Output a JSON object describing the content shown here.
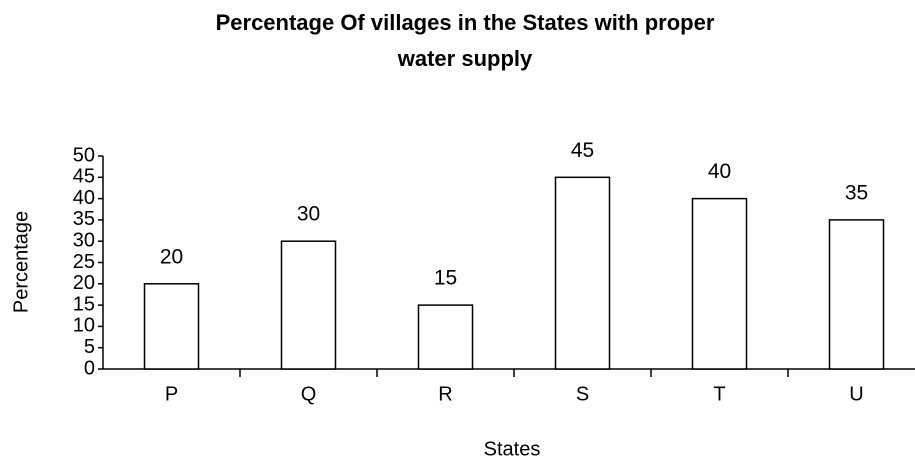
{
  "chart_data": {
    "type": "bar",
    "title": [
      "Percentage  Of villages  in the States with proper",
      "water supply"
    ],
    "x_label": "States",
    "y_label": "Percentage",
    "categories": [
      "P",
      "Q",
      "R",
      "S",
      "T",
      "U"
    ],
    "values": [
      20,
      30,
      15,
      45,
      40,
      35
    ],
    "color": "#ffffff",
    "ylim": [
      0,
      50
    ],
    "yticks": [
      0,
      5,
      10,
      15,
      20,
      25,
      30,
      35,
      40,
      45,
      50
    ],
    "grid": false
  }
}
